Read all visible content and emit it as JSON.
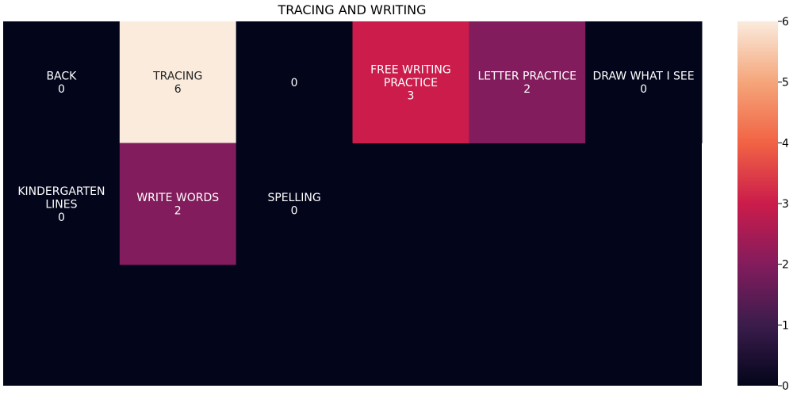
{
  "chart_data": {
    "type": "heatmap",
    "title": "TRACING AND WRITING",
    "rows": 3,
    "cols": 6,
    "cells": [
      {
        "row": 0,
        "col": 0,
        "label": "BACK",
        "value": 0
      },
      {
        "row": 0,
        "col": 1,
        "label": "TRACING",
        "value": 6
      },
      {
        "row": 0,
        "col": 2,
        "label": "",
        "value": 0
      },
      {
        "row": 0,
        "col": 3,
        "label": "FREE WRITING\nPRACTICE",
        "value": 3
      },
      {
        "row": 0,
        "col": 4,
        "label": "LETTER PRACTICE",
        "value": 2
      },
      {
        "row": 0,
        "col": 5,
        "label": "DRAW WHAT I SEE",
        "value": 0
      },
      {
        "row": 1,
        "col": 0,
        "label": "KINDERGARTEN\nLINES",
        "value": 0
      },
      {
        "row": 1,
        "col": 1,
        "label": "WRITE WORDS",
        "value": 2
      },
      {
        "row": 1,
        "col": 2,
        "label": "SPELLING",
        "value": 0
      }
    ],
    "background_value": 0,
    "colorbar": {
      "min": 0,
      "max": 6,
      "ticks": [
        0,
        1,
        2,
        3,
        4,
        5,
        6
      ]
    },
    "grid": false
  }
}
